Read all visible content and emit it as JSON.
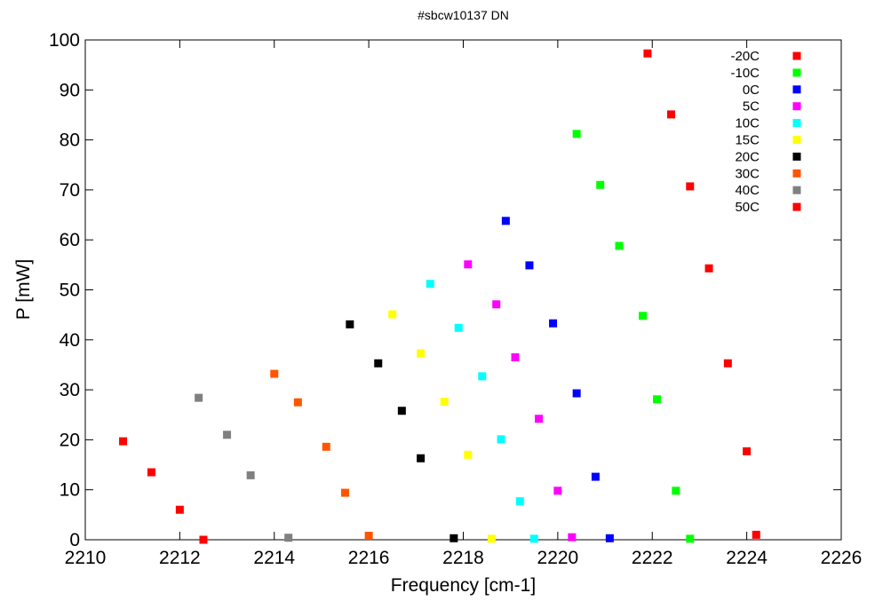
{
  "chart_data": {
    "type": "scatter",
    "title": "#sbcw10137 DN",
    "xlabel": "Frequency [cm-1]",
    "ylabel": "P [mW]",
    "xlim": [
      2210,
      2226
    ],
    "ylim": [
      0,
      100
    ],
    "xticks": [
      "2210",
      "2212",
      "2214",
      "2216",
      "2218",
      "2220",
      "2222",
      "2224",
      "2226"
    ],
    "yticks": [
      "0",
      "10",
      "20",
      "30",
      "40",
      "50",
      "60",
      "70",
      "80",
      "90",
      "100"
    ],
    "grid": false,
    "legend_position": "top-right",
    "marker": "square",
    "series": [
      {
        "name": "-20C",
        "color": "#ff0000",
        "points": [
          [
            2221.9,
            97.3
          ],
          [
            2222.4,
            85.1
          ],
          [
            2222.8,
            70.7
          ],
          [
            2223.2,
            54.3
          ],
          [
            2223.6,
            35.3
          ],
          [
            2224.0,
            17.7
          ],
          [
            2224.2,
            1.0
          ]
        ]
      },
      {
        "name": "-10C",
        "color": "#00ff00",
        "points": [
          [
            2220.4,
            81.2
          ],
          [
            2220.9,
            71.0
          ],
          [
            2221.3,
            58.8
          ],
          [
            2221.8,
            44.8
          ],
          [
            2222.1,
            28.1
          ],
          [
            2222.5,
            9.8
          ],
          [
            2222.8,
            0.2
          ]
        ]
      },
      {
        "name": "0C",
        "color": "#0000ff",
        "points": [
          [
            2218.9,
            63.8
          ],
          [
            2219.4,
            54.9
          ],
          [
            2219.9,
            43.3
          ],
          [
            2220.4,
            29.3
          ],
          [
            2220.8,
            12.6
          ],
          [
            2221.1,
            0.3
          ]
        ]
      },
      {
        "name": "5C",
        "color": "#ff00ff",
        "points": [
          [
            2218.1,
            55.1
          ],
          [
            2218.7,
            47.1
          ],
          [
            2219.1,
            36.5
          ],
          [
            2219.6,
            24.2
          ],
          [
            2220.0,
            9.8
          ],
          [
            2220.3,
            0.5
          ]
        ]
      },
      {
        "name": "10C",
        "color": "#00ffff",
        "points": [
          [
            2217.3,
            51.2
          ],
          [
            2217.9,
            42.4
          ],
          [
            2218.4,
            32.7
          ],
          [
            2218.8,
            20.1
          ],
          [
            2219.2,
            7.7
          ],
          [
            2219.5,
            0.2
          ]
        ]
      },
      {
        "name": "15C",
        "color": "#ffff00",
        "points": [
          [
            2216.5,
            45.1
          ],
          [
            2217.1,
            37.3
          ],
          [
            2217.6,
            27.6
          ],
          [
            2218.1,
            17.0
          ],
          [
            2218.6,
            0.2
          ]
        ]
      },
      {
        "name": "20C",
        "color": "#000000",
        "points": [
          [
            2215.6,
            43.1
          ],
          [
            2216.2,
            35.3
          ],
          [
            2216.7,
            25.8
          ],
          [
            2217.1,
            16.3
          ],
          [
            2217.8,
            0.3
          ]
        ]
      },
      {
        "name": "30C",
        "color": "#ff5500",
        "points": [
          [
            2214.0,
            33.2
          ],
          [
            2214.5,
            27.5
          ],
          [
            2215.1,
            18.6
          ],
          [
            2215.5,
            9.4
          ],
          [
            2216.0,
            0.8
          ]
        ]
      },
      {
        "name": "40C",
        "color": "#808080",
        "points": [
          [
            2212.4,
            28.4
          ],
          [
            2213.0,
            21.0
          ],
          [
            2213.5,
            12.9
          ],
          [
            2214.3,
            0.4
          ]
        ]
      },
      {
        "name": "50C",
        "color": "#ff0000",
        "points": [
          [
            2210.8,
            19.7
          ],
          [
            2211.4,
            13.5
          ],
          [
            2212.0,
            6.0
          ],
          [
            2212.5,
            0.0
          ]
        ]
      }
    ]
  }
}
